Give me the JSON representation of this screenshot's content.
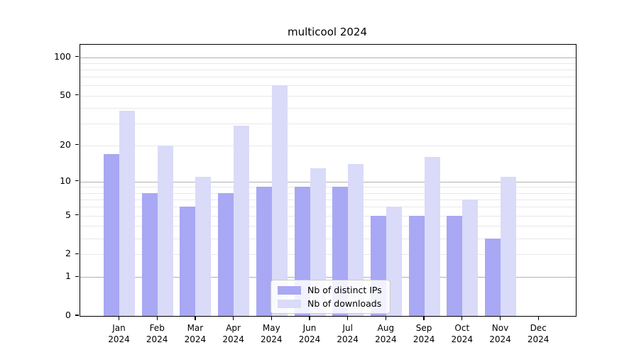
{
  "title": "multicool 2024",
  "chart_data": {
    "type": "bar",
    "title": "multicool 2024",
    "categories": [
      "Jan 2024",
      "Feb 2024",
      "Mar 2024",
      "Apr 2024",
      "May 2024",
      "Jun 2024",
      "Jul 2024",
      "Aug 2024",
      "Sep 2024",
      "Oct 2024",
      "Nov 2024",
      "Dec 2024"
    ],
    "series": [
      {
        "name": "Nb of distinct IPs",
        "color": "#a8a8f4",
        "values": [
          17,
          8,
          6,
          8,
          9,
          9,
          9,
          5,
          5,
          5,
          3,
          0
        ]
      },
      {
        "name": "Nb of downloads",
        "color": "#dadaf9",
        "values": [
          38,
          20,
          11,
          29,
          60,
          13,
          14,
          6,
          16,
          7,
          11,
          0
        ]
      }
    ],
    "xlabel": "",
    "ylabel": "",
    "y_scale": "log1p",
    "ylim": [
      0,
      125
    ],
    "y_ticks": [
      0,
      1,
      2,
      5,
      10,
      20,
      50,
      100
    ],
    "y_major_grid": [
      1,
      10,
      100
    ],
    "y_minor_grid": [
      2,
      3,
      4,
      5,
      6,
      7,
      8,
      9,
      20,
      30,
      40,
      50,
      60,
      70,
      80,
      90
    ],
    "grid": "on",
    "legend_position": "lower center"
  },
  "colors": {
    "major_grid": "#b0b0b0",
    "minor_grid": "#e8e8e8",
    "axis": "#000000",
    "background": "#ffffff"
  }
}
